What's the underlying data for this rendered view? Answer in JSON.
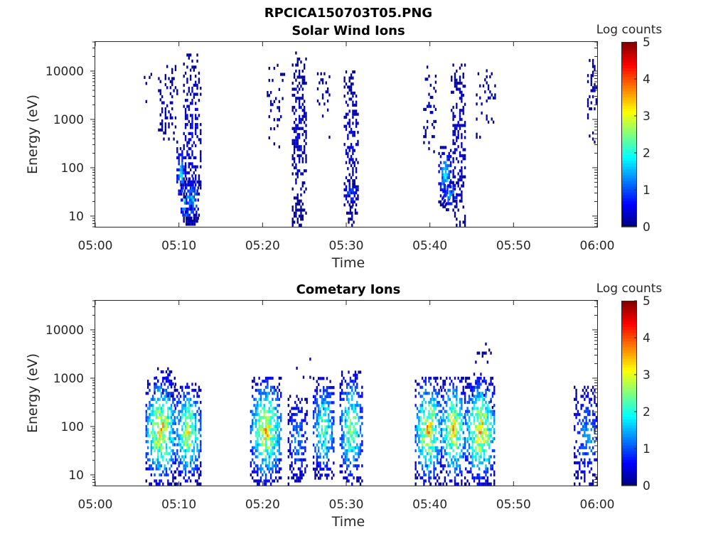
{
  "figure": {
    "title": "RPCICA150703T05.PNG"
  },
  "colormap": {
    "stops": [
      "#00007f",
      "#0000ff",
      "#007fff",
      "#00ffff",
      "#7fff7f",
      "#ffff00",
      "#ff7f00",
      "#ff0000",
      "#7f0000"
    ]
  },
  "chart_data": [
    {
      "type": "heatmap",
      "title": "Solar Wind Ions",
      "xlabel": "Time",
      "ylabel": "Energy (eV)",
      "yscale": "log",
      "xlim": [
        "05:00",
        "06:00"
      ],
      "ylim": [
        6,
        40000
      ],
      "xticks": [
        "05:00",
        "05:10",
        "05:20",
        "05:30",
        "05:40",
        "05:50",
        "06:00"
      ],
      "yticks": [
        10,
        100,
        1000,
        10000
      ],
      "ytick_labels": [
        "10",
        "100",
        "1000",
        "10000"
      ],
      "colorbar": {
        "label": "Log counts",
        "range": [
          0,
          5
        ],
        "ticks": [
          "0",
          "1",
          "2",
          "3",
          "4",
          "5"
        ]
      },
      "blobs": [
        {
          "t0": 5.8,
          "t1": 7.0,
          "e0": 2.9,
          "e1": 4.2,
          "peak": 0.4,
          "density": 0.06
        },
        {
          "t0": 7.5,
          "t1": 9.7,
          "e0": 2.5,
          "e1": 4.1,
          "peak": 0.5,
          "density": 0.3
        },
        {
          "t0": 9.7,
          "t1": 10.7,
          "e0": 1.3,
          "e1": 2.4,
          "peak": 2.0,
          "density": 0.75
        },
        {
          "t0": 10.2,
          "t1": 11.4,
          "e0": 0.8,
          "e1": 1.7,
          "peak": 2.4,
          "density": 0.85
        },
        {
          "t0": 10.5,
          "t1": 12.5,
          "e0": 0.8,
          "e1": 4.4,
          "peak": 0.7,
          "density": 0.5
        },
        {
          "t0": 10.8,
          "t1": 12.2,
          "e0": 0.8,
          "e1": 1.8,
          "peak": 1.8,
          "density": 0.8
        },
        {
          "t0": 11.0,
          "t1": 12.2,
          "e0": 0.8,
          "e1": 0.95,
          "peak": 0.3,
          "density": 0.55
        },
        {
          "t0": 20.5,
          "t1": 22.5,
          "e0": 2.4,
          "e1": 4.2,
          "peak": 0.4,
          "density": 0.22
        },
        {
          "t0": 23.5,
          "t1": 25.2,
          "e0": 0.78,
          "e1": 4.4,
          "peak": 0.55,
          "density": 0.55
        },
        {
          "t0": 23.5,
          "t1": 24.8,
          "e0": 0.78,
          "e1": 1.3,
          "peak": 0.15,
          "density": 0.85
        },
        {
          "t0": 26.5,
          "t1": 28.0,
          "e0": 2.6,
          "e1": 4.0,
          "peak": 0.4,
          "density": 0.2
        },
        {
          "t0": 29.7,
          "t1": 31.3,
          "e0": 1.2,
          "e1": 4.0,
          "peak": 0.6,
          "density": 0.55
        },
        {
          "t0": 29.7,
          "t1": 31.2,
          "e0": 1.2,
          "e1": 1.7,
          "peak": 1.3,
          "density": 0.7
        },
        {
          "t0": 30.0,
          "t1": 31.2,
          "e0": 0.78,
          "e1": 1.2,
          "peak": 0.2,
          "density": 0.6
        },
        {
          "t0": 39.2,
          "t1": 40.8,
          "e0": 2.3,
          "e1": 4.1,
          "peak": 0.4,
          "density": 0.22
        },
        {
          "t0": 41.0,
          "t1": 42.5,
          "e0": 1.2,
          "e1": 2.4,
          "peak": 2.0,
          "density": 0.8
        },
        {
          "t0": 41.5,
          "t1": 43.2,
          "e0": 1.1,
          "e1": 1.7,
          "peak": 1.6,
          "density": 0.7
        },
        {
          "t0": 42.5,
          "t1": 44.3,
          "e0": 0.78,
          "e1": 4.1,
          "peak": 0.6,
          "density": 0.55
        },
        {
          "t0": 45.5,
          "t1": 47.8,
          "e0": 2.6,
          "e1": 4.0,
          "peak": 0.4,
          "density": 0.2
        },
        {
          "t0": 58.8,
          "t1": 60.4,
          "e0": 2.5,
          "e1": 4.2,
          "peak": 0.4,
          "density": 0.3
        }
      ]
    },
    {
      "type": "heatmap",
      "title": "Cometary Ions",
      "xlabel": "Time",
      "ylabel": "Energy (eV)",
      "yscale": "log",
      "xlim": [
        "05:00",
        "06:00"
      ],
      "ylim": [
        6,
        40000
      ],
      "xticks": [
        "05:00",
        "05:10",
        "05:20",
        "05:30",
        "05:40",
        "05:50",
        "06:00"
      ],
      "yticks": [
        10,
        100,
        1000,
        10000
      ],
      "ytick_labels": [
        "10",
        "100",
        "1000",
        "10000"
      ],
      "colorbar": {
        "label": "Log counts",
        "range": [
          0,
          5
        ],
        "ticks": [
          "0",
          "1",
          "2",
          "3",
          "4",
          "5"
        ]
      },
      "blobs": [
        {
          "t0": 6.0,
          "t1": 9.5,
          "e0": 0.78,
          "e1": 3.0,
          "peak": 3.8,
          "density": 0.8
        },
        {
          "t0": 7.0,
          "t1": 9.5,
          "e0": 2.6,
          "e1": 3.2,
          "peak": 1.0,
          "density": 0.3
        },
        {
          "t0": 9.5,
          "t1": 12.5,
          "e0": 0.78,
          "e1": 2.9,
          "peak": 3.3,
          "density": 0.8
        },
        {
          "t0": 18.5,
          "t1": 22.2,
          "e0": 0.78,
          "e1": 3.0,
          "peak": 3.6,
          "density": 0.8
        },
        {
          "t0": 23.0,
          "t1": 25.2,
          "e0": 0.78,
          "e1": 2.6,
          "peak": 1.6,
          "density": 0.6
        },
        {
          "t0": 24.0,
          "t1": 26.5,
          "e0": 2.8,
          "e1": 3.6,
          "peak": 0.4,
          "density": 0.06
        },
        {
          "t0": 26.0,
          "t1": 28.5,
          "e0": 0.9,
          "e1": 3.0,
          "peak": 2.8,
          "density": 0.7
        },
        {
          "t0": 29.2,
          "t1": 31.8,
          "e0": 0.78,
          "e1": 3.1,
          "peak": 3.0,
          "density": 0.75
        },
        {
          "t0": 38.2,
          "t1": 41.3,
          "e0": 0.78,
          "e1": 3.0,
          "peak": 3.7,
          "density": 0.8
        },
        {
          "t0": 41.3,
          "t1": 44.2,
          "e0": 0.78,
          "e1": 3.0,
          "peak": 3.6,
          "density": 0.8
        },
        {
          "t0": 44.2,
          "t1": 47.8,
          "e0": 0.78,
          "e1": 3.0,
          "peak": 3.7,
          "density": 0.8
        },
        {
          "t0": 45.0,
          "t1": 47.5,
          "e0": 2.3,
          "e1": 3.7,
          "peak": 0.5,
          "density": 0.12
        },
        {
          "t0": 57.2,
          "t1": 60.4,
          "e0": 0.78,
          "e1": 2.8,
          "peak": 1.6,
          "density": 0.55
        }
      ]
    }
  ]
}
